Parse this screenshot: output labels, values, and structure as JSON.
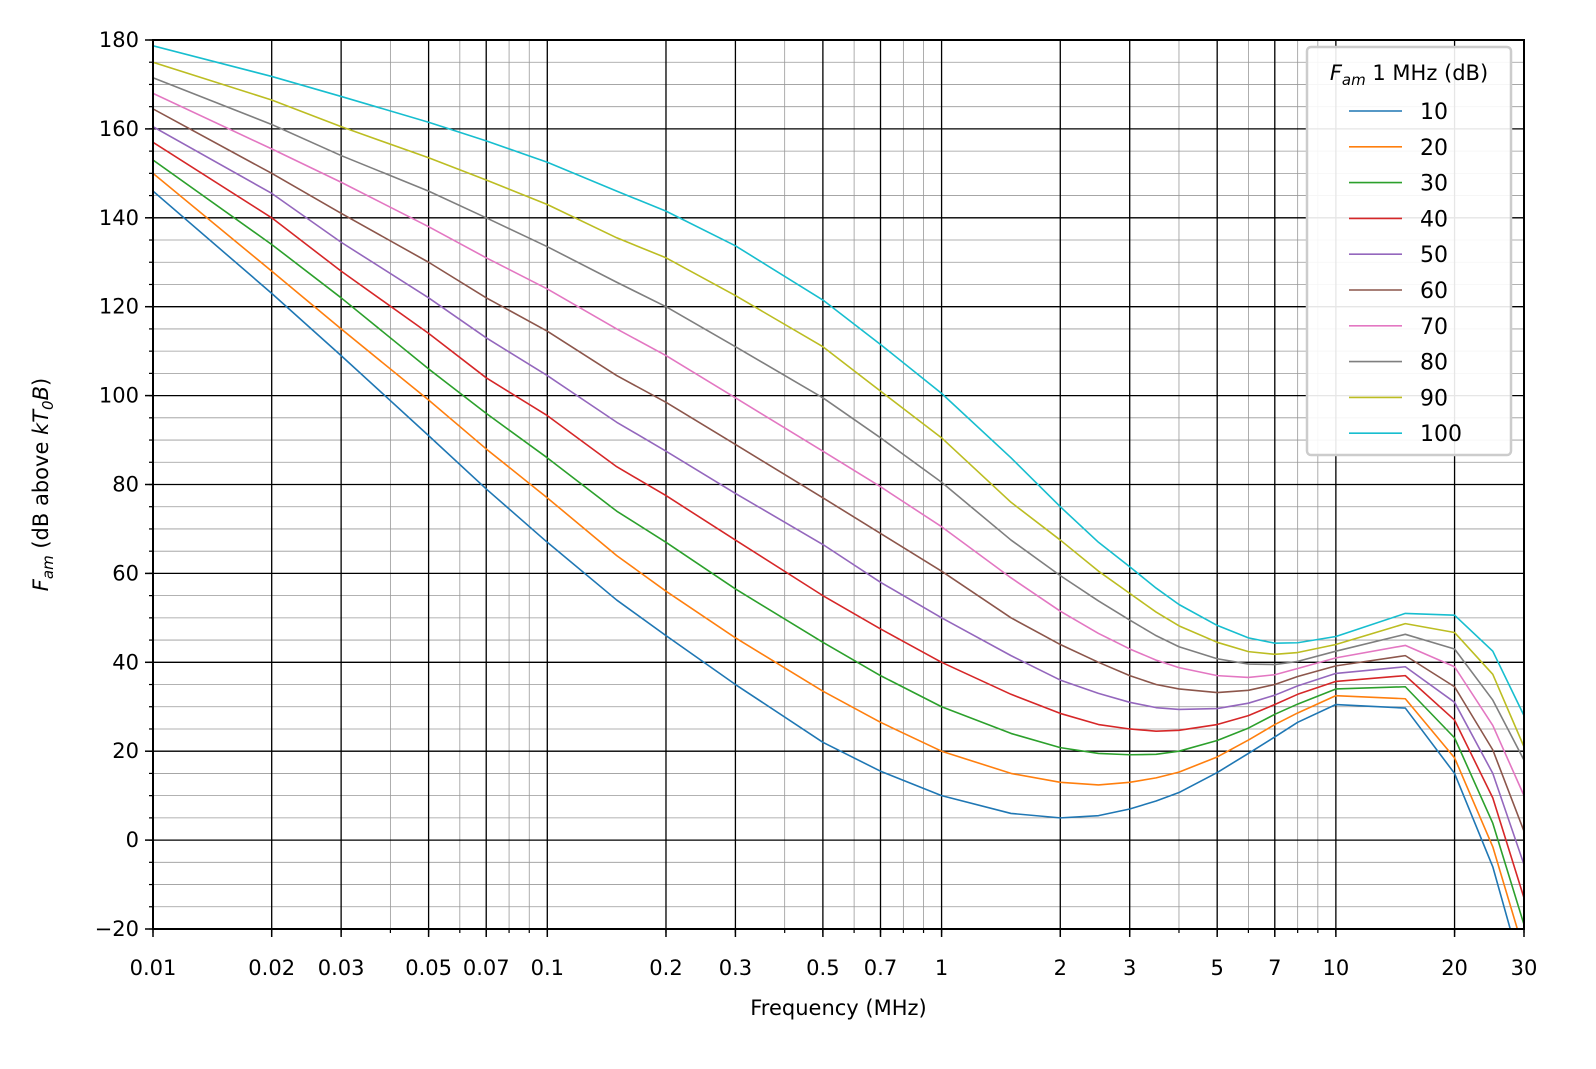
{
  "chart_data": {
    "type": "line",
    "xlabel": "Frequency (MHz)",
    "ylabel_prefix": "F",
    "ylabel_sub": "am",
    "ylabel_rest": " (dB above ",
    "ylabel_kt": "kT",
    "ylabel_kt_sub": "0",
    "ylabel_b": "B",
    "ylabel_close": ")",
    "x_scale": "log",
    "xlim": [
      0.01,
      30
    ],
    "ylim": [
      -20,
      180
    ],
    "x_ticks": [
      0.01,
      0.02,
      0.03,
      0.05,
      0.07,
      0.1,
      0.2,
      0.3,
      0.5,
      0.7,
      1,
      2,
      3,
      5,
      7,
      10,
      20,
      30
    ],
    "x_tick_labels": [
      "0.01",
      "0.02",
      "0.03",
      "0.05",
      "0.07",
      "0.1",
      "0.2",
      "0.3",
      "0.5",
      "0.7",
      "1",
      "2",
      "3",
      "5",
      "7",
      "10",
      "20",
      "30"
    ],
    "y_ticks": [
      -20,
      0,
      20,
      40,
      60,
      80,
      100,
      120,
      140,
      160,
      180
    ],
    "y_tick_labels": [
      "−20",
      "0",
      "20",
      "40",
      "60",
      "80",
      "100",
      "120",
      "140",
      "160",
      "180"
    ],
    "grid": "major and minor",
    "legend": {
      "placement": "top-right",
      "title_prefix": "F",
      "title_sub": "am",
      "title_rest": " 1 MHz (dB)"
    },
    "x": [
      0.01,
      0.02,
      0.03,
      0.05,
      0.07,
      0.1,
      0.15,
      0.2,
      0.3,
      0.5,
      0.7,
      1,
      1.5,
      2,
      2.5,
      3,
      3.5,
      4,
      5,
      6,
      7,
      8,
      10,
      15,
      20,
      25,
      30
    ],
    "series": [
      {
        "name": "10",
        "color": "#1f77b4",
        "values": [
          146,
          123,
          109,
          91,
          79,
          67,
          54,
          46,
          35,
          22,
          15.5,
          10,
          6,
          5,
          5.5,
          7,
          8.8,
          10.7,
          15.2,
          19.5,
          23.2,
          26.5,
          30.5,
          29.7,
          15,
          -6,
          -31
        ]
      },
      {
        "name": "20",
        "color": "#ff7f0e",
        "values": [
          150,
          128,
          115,
          99,
          88,
          77,
          64,
          56,
          45.5,
          33.5,
          26.5,
          20,
          15,
          13,
          12.4,
          13,
          14,
          15.3,
          18.7,
          22.5,
          26,
          28.6,
          32.5,
          31.8,
          18.5,
          -1.5,
          -25
        ]
      },
      {
        "name": "30",
        "color": "#2ca02c",
        "values": [
          153,
          134,
          122,
          106,
          96,
          86,
          74,
          67,
          56.5,
          44.5,
          37,
          30,
          24,
          20.8,
          19.5,
          19.2,
          19.3,
          20,
          22.4,
          25.2,
          28.3,
          30.6,
          34,
          34.5,
          23,
          3.8,
          -19
        ]
      },
      {
        "name": "40",
        "color": "#d62728",
        "values": [
          157,
          140,
          128,
          114,
          104,
          95.5,
          84,
          77.5,
          67.5,
          55,
          47.5,
          40,
          32.8,
          28.5,
          26,
          25,
          24.5,
          24.7,
          26,
          28,
          30.5,
          32.8,
          35.7,
          37,
          27,
          9.5,
          -13
        ]
      },
      {
        "name": "50",
        "color": "#9467bd",
        "values": [
          160.5,
          145.5,
          134.5,
          122,
          113,
          104.5,
          94,
          87.5,
          78,
          66.5,
          58,
          50,
          41.5,
          36,
          33,
          31,
          29.8,
          29.4,
          29.6,
          30.8,
          32.6,
          34.7,
          37.5,
          39,
          31,
          15,
          -5.5
        ]
      },
      {
        "name": "60",
        "color": "#8c564b",
        "values": [
          164.5,
          150,
          141,
          130,
          122,
          114.5,
          104.5,
          98.5,
          89,
          77,
          69,
          60.5,
          50,
          44,
          40,
          37,
          35,
          34,
          33.2,
          33.7,
          35,
          36.8,
          39.2,
          41.5,
          34.5,
          20.3,
          2
        ]
      },
      {
        "name": "70",
        "color": "#e377c2",
        "values": [
          168,
          155.5,
          148,
          138,
          131,
          124,
          115,
          109,
          99.5,
          87.5,
          79.5,
          70.5,
          59,
          51.5,
          46.5,
          43,
          40.5,
          38.8,
          37,
          36.6,
          37.2,
          38.6,
          41,
          43.8,
          39,
          25.8,
          10
        ]
      },
      {
        "name": "80",
        "color": "#7f7f7f",
        "values": [
          171.5,
          161,
          154,
          146,
          140,
          133.5,
          125.5,
          120,
          111,
          99.5,
          90.5,
          80.5,
          67.5,
          59.5,
          53.8,
          49.5,
          46,
          43.5,
          40.8,
          39.6,
          39.5,
          40.2,
          42.5,
          46.3,
          43,
          31.5,
          18
        ]
      },
      {
        "name": "90",
        "color": "#bcbd22",
        "values": [
          175,
          166.5,
          160.5,
          153.5,
          148.5,
          143,
          135.5,
          131,
          122.5,
          111,
          101,
          90.5,
          76,
          67.5,
          60.5,
          55.5,
          51.3,
          48.2,
          44.5,
          42.4,
          41.8,
          42.2,
          44,
          48.7,
          46.7,
          37.3,
          21
        ]
      },
      {
        "name": "100",
        "color": "#17becf",
        "values": [
          178.7,
          171.8,
          167.3,
          161.5,
          157.3,
          152.5,
          146,
          141.5,
          133.7,
          121.5,
          111.5,
          100.5,
          86,
          75,
          67,
          61.5,
          56.7,
          53,
          48.3,
          45.5,
          44.3,
          44.4,
          45.8,
          51,
          50.6,
          42.5,
          28
        ]
      }
    ]
  }
}
